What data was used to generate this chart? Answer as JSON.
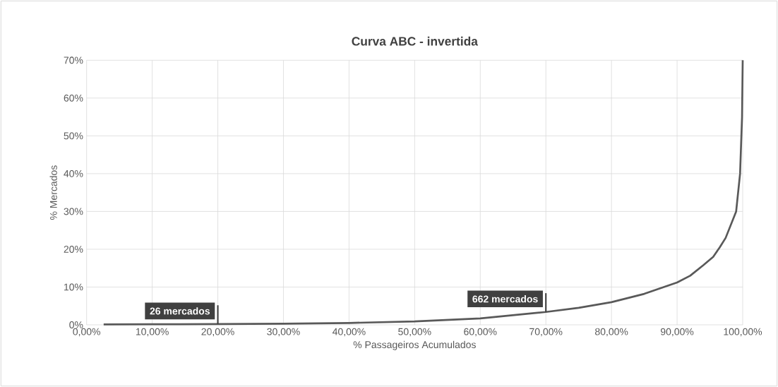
{
  "chart_data": {
    "type": "line",
    "title": "Curva ABC - invertida",
    "xlabel": "% Passageiros Acumulados",
    "ylabel": "% Mercados",
    "x": [
      2.6,
      10,
      20,
      30,
      40,
      50,
      60,
      70,
      75,
      80,
      85,
      90,
      92,
      94,
      95.5,
      96.5,
      97.4,
      98.2,
      99,
      99.6,
      99.9,
      100
    ],
    "series": [
      {
        "color": "#595959",
        "values": [
          0.1,
          0.15,
          0.2,
          0.3,
          0.5,
          0.9,
          1.7,
          3.4,
          4.5,
          6,
          8.2,
          11.2,
          13,
          15.8,
          18,
          20.5,
          23,
          26.5,
          30,
          40,
          55,
          70
        ]
      }
    ],
    "xlim": [
      0,
      100
    ],
    "ylim": [
      0,
      70
    ],
    "xticks": [
      {
        "value": 0,
        "label": "0,00%"
      },
      {
        "value": 10,
        "label": "10,00%"
      },
      {
        "value": 20,
        "label": "20,00%"
      },
      {
        "value": 30,
        "label": "30,00%"
      },
      {
        "value": 40,
        "label": "40,00%"
      },
      {
        "value": 50,
        "label": "50,00%"
      },
      {
        "value": 60,
        "label": "60,00%"
      },
      {
        "value": 70,
        "label": "70,00%"
      },
      {
        "value": 80,
        "label": "80,00%"
      },
      {
        "value": 90,
        "label": "90,00%"
      },
      {
        "value": 100,
        "label": "100,00%"
      }
    ],
    "yticks": [
      {
        "value": 0,
        "label": "0%"
      },
      {
        "value": 10,
        "label": "10%"
      },
      {
        "value": 20,
        "label": "20%"
      },
      {
        "value": 30,
        "label": "30%"
      },
      {
        "value": 40,
        "label": "40%"
      },
      {
        "value": 50,
        "label": "50%"
      },
      {
        "value": 60,
        "label": "60%"
      },
      {
        "value": 70,
        "label": "70%"
      }
    ],
    "grid": true,
    "marker": "none",
    "line_style": "solid",
    "annotations": [
      {
        "text": "26 mercados",
        "x": 20,
        "y": 0.2
      },
      {
        "text": "662 mercados",
        "x": 70,
        "y": 3.4
      }
    ]
  }
}
